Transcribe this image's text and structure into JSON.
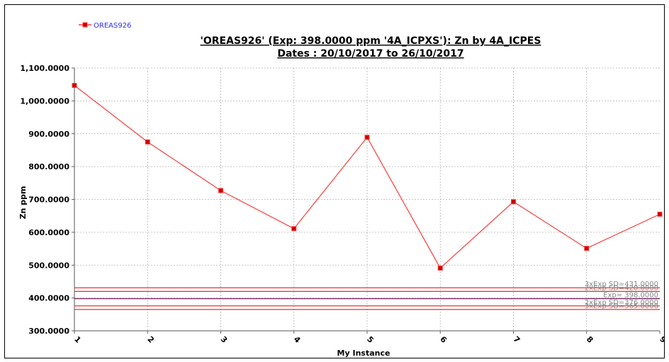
{
  "chart_data": {
    "type": "line",
    "title": "'OREAS926' (Exp: 398.0000 ppm '4A_ICPXS'): Zn by 4A_ICPES",
    "subtitle": "Dates : 20/10/2017 to 26/10/2017",
    "xlabel": "My Instance",
    "ylabel": "Zn ppm",
    "ylim": [
      300,
      1100
    ],
    "y_ticks": [
      "300.0000",
      "400.0000",
      "500.0000",
      "600.0000",
      "700.0000",
      "800.0000",
      "900.0000",
      "1,000.0000",
      "1,100.0000"
    ],
    "x": [
      1,
      2,
      3,
      4,
      5,
      6,
      7,
      8,
      9
    ],
    "x_tick_labels": [
      "1",
      "2",
      "3",
      "4",
      "5",
      "6",
      "7",
      "8",
      "9"
    ],
    "grid": true,
    "legend_position": "top-left",
    "series": [
      {
        "name": "OREAS926",
        "color": "#ff3b3b",
        "values": [
          1047,
          875,
          727,
          611,
          889,
          491,
          693,
          551,
          655
        ]
      }
    ],
    "reference_lines": [
      {
        "label": "3xExp SD=431.0000",
        "value": 431,
        "color": "#e83030"
      },
      {
        "label": "2xExp SD=420.0000",
        "value": 420,
        "color": "#e83030"
      },
      {
        "label": "Exp= 398.0000",
        "value": 398,
        "color": "#7a2a6a"
      },
      {
        "label": "2xExp SD=376.0000",
        "value": 376,
        "color": "#e83030"
      },
      {
        "label": "3xExp SD=365.0000",
        "value": 365,
        "color": "#e83030"
      }
    ]
  }
}
